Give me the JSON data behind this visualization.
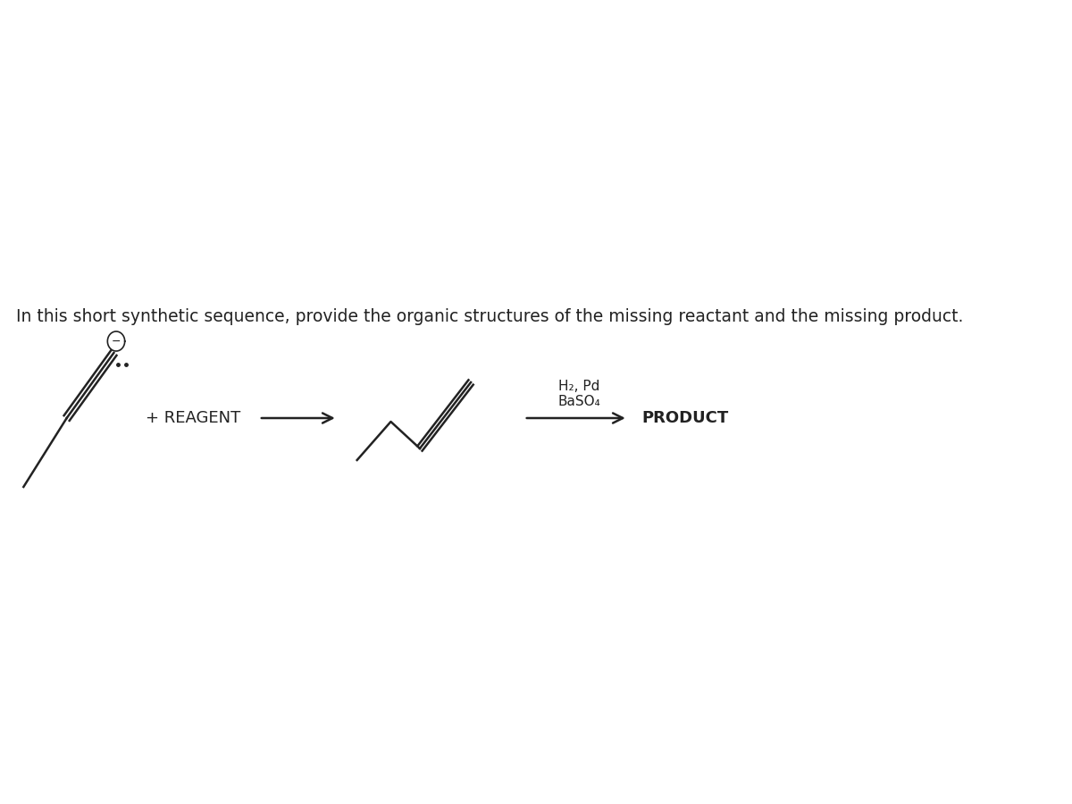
{
  "title_text": "In this short synthetic sequence, provide the organic structures of the missing reactant and the missing product.",
  "title_fontsize": 13.5,
  "bg_color": "#ffffff",
  "text_color": "#222222",
  "reagent_label": "+ REAGENT",
  "product_label": "PRODUCT",
  "h2pd_label1": "H₂, Pd",
  "h2pd_label2": "BaSO₄"
}
